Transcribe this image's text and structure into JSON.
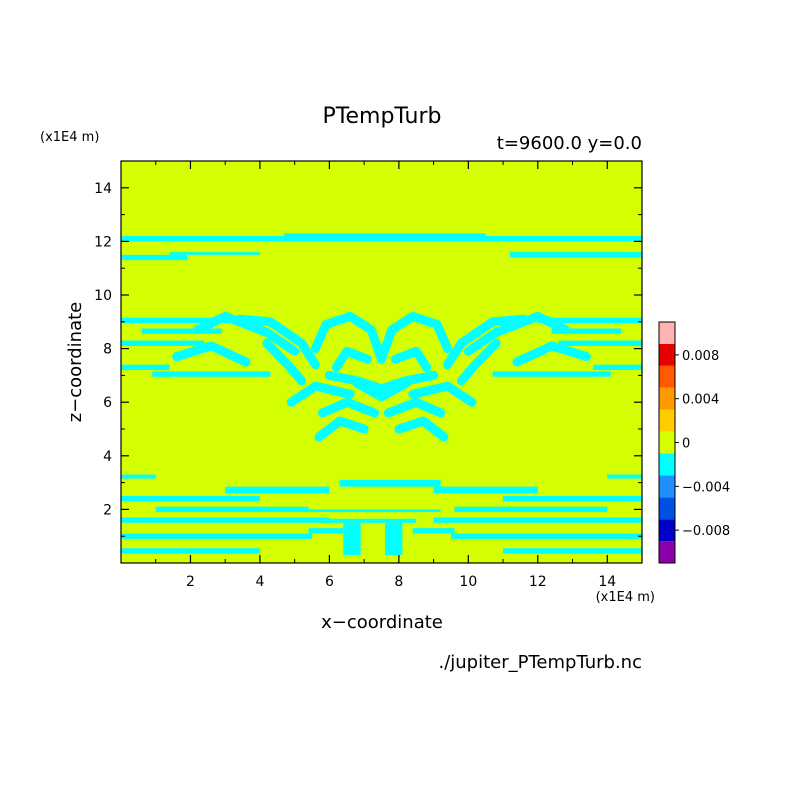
{
  "chart_data": {
    "type": "heatmap",
    "title": "PTempTurb",
    "subtitle": "t=9600.0 y=0.0",
    "xlabel": "x−coordinate",
    "ylabel": "z−coordinate",
    "x_unit": "(x1E4 m)",
    "y_unit": "(x1E4 m)",
    "source_file": "./jupiter_PTempTurb.nc",
    "xlim": [
      0,
      15
    ],
    "ylim": [
      0,
      15
    ],
    "x_ticks": [
      2,
      4,
      6,
      8,
      10,
      12,
      14
    ],
    "y_ticks": [
      2,
      4,
      6,
      8,
      10,
      12,
      14
    ],
    "background_level": 0,
    "colorbar": {
      "levels": [
        -0.01,
        -0.008,
        -0.006,
        -0.004,
        -0.002,
        0,
        0.002,
        0.004,
        0.006,
        0.008,
        0.01
      ],
      "colors": [
        "#8b00a8",
        "#0000c8",
        "#0050e6",
        "#1e90ff",
        "#00ffff",
        "#d4ff00",
        "#ffcc00",
        "#ff9900",
        "#ff5a00",
        "#e60000",
        "#ffb4b4"
      ],
      "tick_labels": [
        "0.008",
        "0.004",
        "0",
        "−0.004",
        "−0.008"
      ],
      "tick_values": [
        0.008,
        0.004,
        0,
        -0.004,
        -0.008
      ]
    },
    "regions": {
      "level": -0.002,
      "color": "#00ffff",
      "bands": [
        [
          0.0,
          12.0,
          15.0,
          12.2
        ],
        [
          4.7,
          12.2,
          10.5,
          12.3
        ],
        [
          0.0,
          11.3,
          1.9,
          11.5
        ],
        [
          1.4,
          11.5,
          4.0,
          11.6
        ],
        [
          11.2,
          11.4,
          15.0,
          11.6
        ],
        [
          0.0,
          8.95,
          3.2,
          9.15
        ],
        [
          0.6,
          8.55,
          2.9,
          8.75
        ],
        [
          0.0,
          8.1,
          2.4,
          8.3
        ],
        [
          0.0,
          7.2,
          1.4,
          7.4
        ],
        [
          0.9,
          6.95,
          4.3,
          7.15
        ],
        [
          12.0,
          8.95,
          15.0,
          9.15
        ],
        [
          12.4,
          8.55,
          14.4,
          8.75
        ],
        [
          12.6,
          8.1,
          15.0,
          8.3
        ],
        [
          13.6,
          7.2,
          15.0,
          7.4
        ],
        [
          10.7,
          6.95,
          14.1,
          7.15
        ],
        [
          0.0,
          3.15,
          1.0,
          3.3
        ],
        [
          14.0,
          3.15,
          15.0,
          3.3
        ],
        [
          3.0,
          2.6,
          6.0,
          2.85
        ],
        [
          6.3,
          2.85,
          9.2,
          3.1
        ],
        [
          9.0,
          2.6,
          12.0,
          2.85
        ],
        [
          0.0,
          2.3,
          4.0,
          2.5
        ],
        [
          1.0,
          1.9,
          5.4,
          2.1
        ],
        [
          5.3,
          1.9,
          9.2,
          2.0
        ],
        [
          9.6,
          1.9,
          14.0,
          2.1
        ],
        [
          11.0,
          2.3,
          15.0,
          2.5
        ],
        [
          0.0,
          1.5,
          6.0,
          1.7
        ],
        [
          6.0,
          1.5,
          8.5,
          1.65
        ],
        [
          9.0,
          1.5,
          15.0,
          1.7
        ],
        [
          0.0,
          0.9,
          5.5,
          1.1
        ],
        [
          9.5,
          0.9,
          15.0,
          1.1
        ],
        [
          0.0,
          0.35,
          4.0,
          0.55
        ],
        [
          11.0,
          0.35,
          15.0,
          0.55
        ],
        [
          6.4,
          0.3,
          6.9,
          1.5
        ],
        [
          7.6,
          0.3,
          8.1,
          1.5
        ],
        [
          5.4,
          1.1,
          6.4,
          1.3
        ],
        [
          8.4,
          1.1,
          9.6,
          1.3
        ]
      ],
      "strokes": [
        [
          [
            2.2,
            8.7
          ],
          [
            3.0,
            9.2
          ],
          [
            4.2,
            8.6
          ],
          [
            5.0,
            7.9
          ]
        ],
        [
          [
            1.6,
            7.7
          ],
          [
            2.6,
            8.1
          ],
          [
            3.6,
            7.5
          ]
        ],
        [
          [
            3.4,
            9.1
          ],
          [
            4.3,
            9.0
          ],
          [
            5.2,
            8.2
          ],
          [
            5.6,
            7.4
          ]
        ],
        [
          [
            4.2,
            8.2
          ],
          [
            4.8,
            7.4
          ],
          [
            5.2,
            6.8
          ]
        ],
        [
          [
            5.6,
            8.0
          ],
          [
            5.9,
            8.9
          ],
          [
            6.6,
            9.2
          ],
          [
            7.2,
            8.7
          ],
          [
            7.5,
            7.6
          ]
        ],
        [
          [
            7.5,
            7.6
          ],
          [
            7.8,
            8.7
          ],
          [
            8.4,
            9.2
          ],
          [
            9.1,
            8.9
          ],
          [
            9.4,
            8.0
          ]
        ],
        [
          [
            6.2,
            7.3
          ],
          [
            6.5,
            7.9
          ],
          [
            7.1,
            7.6
          ]
        ],
        [
          [
            8.8,
            7.3
          ],
          [
            8.5,
            7.9
          ],
          [
            7.9,
            7.6
          ]
        ],
        [
          [
            11.6,
            9.1
          ],
          [
            10.7,
            9.0
          ],
          [
            9.8,
            8.2
          ],
          [
            9.4,
            7.4
          ]
        ],
        [
          [
            12.8,
            8.7
          ],
          [
            12.0,
            9.2
          ],
          [
            10.8,
            8.6
          ],
          [
            10.0,
            7.9
          ]
        ],
        [
          [
            13.4,
            7.7
          ],
          [
            12.4,
            8.1
          ],
          [
            11.4,
            7.5
          ]
        ],
        [
          [
            10.8,
            8.2
          ],
          [
            10.2,
            7.4
          ],
          [
            9.8,
            6.8
          ]
        ],
        [
          [
            4.9,
            6.0
          ],
          [
            5.6,
            6.6
          ],
          [
            6.6,
            6.3
          ]
        ],
        [
          [
            10.1,
            6.0
          ],
          [
            9.4,
            6.6
          ],
          [
            8.4,
            6.3
          ]
        ],
        [
          [
            5.8,
            5.6
          ],
          [
            6.5,
            6.0
          ],
          [
            7.3,
            5.6
          ]
        ],
        [
          [
            9.2,
            5.6
          ],
          [
            8.5,
            6.0
          ],
          [
            7.7,
            5.6
          ]
        ],
        [
          [
            5.7,
            4.7
          ],
          [
            6.3,
            5.3
          ],
          [
            7.0,
            5.0
          ]
        ],
        [
          [
            9.3,
            4.7
          ],
          [
            8.7,
            5.3
          ],
          [
            8.0,
            5.0
          ]
        ],
        [
          [
            6.8,
            6.7
          ],
          [
            7.5,
            6.2
          ],
          [
            8.2,
            6.7
          ]
        ],
        [
          [
            6.0,
            7.0
          ],
          [
            6.8,
            6.8
          ],
          [
            7.5,
            6.5
          ],
          [
            8.2,
            6.8
          ],
          [
            9.0,
            7.0
          ]
        ]
      ]
    }
  }
}
